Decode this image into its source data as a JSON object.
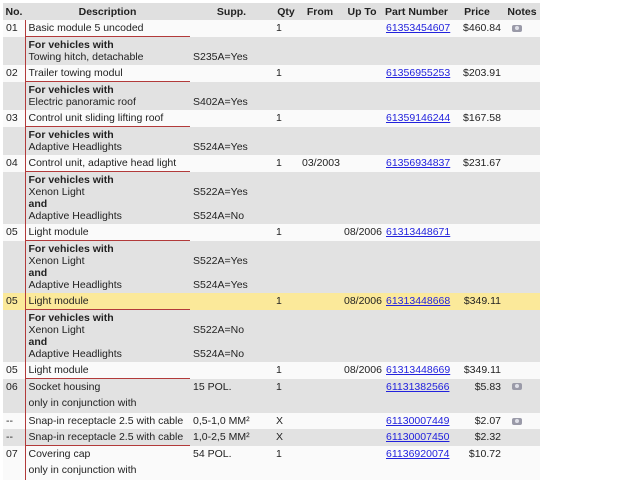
{
  "headers": [
    "No.",
    "Description",
    "Supp.",
    "Qty",
    "From",
    "Up To",
    "Part Number",
    "Price",
    "Notes"
  ],
  "colors": {
    "bracket": "#b23a3a",
    "highlight": "#fbe99a",
    "link": "#2222dd"
  },
  "rows": [
    {
      "kind": "item",
      "no": "01",
      "desc": "Basic module 5 uncoded",
      "supp": "",
      "qty": "1",
      "from": "",
      "upto": "",
      "part": "61353454607",
      "price": "$460.84",
      "camera": true,
      "bg": "white"
    },
    {
      "kind": "cond",
      "lines": [
        {
          "text": "For vehicles with",
          "bold": true,
          "supp": ""
        },
        {
          "text": "Towing hitch, detachable",
          "supp": "S235A=Yes"
        }
      ]
    },
    {
      "kind": "item",
      "no": "02",
      "desc": "Trailer towing modul",
      "supp": "",
      "qty": "1",
      "from": "",
      "upto": "",
      "part": "61356955253",
      "price": "$203.91",
      "bg": "white"
    },
    {
      "kind": "cond",
      "lines": [
        {
          "text": "For vehicles with",
          "bold": true,
          "supp": ""
        },
        {
          "text": "Electric panoramic roof",
          "supp": "S402A=Yes"
        }
      ]
    },
    {
      "kind": "item",
      "no": "03",
      "desc": "Control unit sliding lifting roof",
      "supp": "",
      "qty": "1",
      "from": "",
      "upto": "",
      "part": "61359146244",
      "price": "$167.58",
      "bg": "white"
    },
    {
      "kind": "cond",
      "lines": [
        {
          "text": "For vehicles with",
          "bold": true,
          "supp": ""
        },
        {
          "text": "Adaptive Headlights",
          "supp": "S524A=Yes"
        }
      ]
    },
    {
      "kind": "item",
      "no": "04",
      "desc": "Control unit, adaptive head light",
      "supp": "",
      "qty": "1",
      "from": "03/2003",
      "upto": "",
      "part": "61356934837",
      "price": "$231.67",
      "bg": "white"
    },
    {
      "kind": "cond",
      "lines": [
        {
          "text": "For vehicles with",
          "bold": true,
          "supp": ""
        },
        {
          "text": "Xenon Light",
          "supp": "S522A=Yes"
        },
        {
          "text": "and",
          "bold": true,
          "supp": ""
        },
        {
          "text": "Adaptive Headlights",
          "supp": "S524A=No"
        }
      ]
    },
    {
      "kind": "item",
      "no": "05",
      "desc": "Light module",
      "supp": "",
      "qty": "1",
      "from": "",
      "upto": "08/2006",
      "part": "61313448671",
      "price": "",
      "bg": "white"
    },
    {
      "kind": "cond",
      "lines": [
        {
          "text": "For vehicles with",
          "bold": true,
          "supp": ""
        },
        {
          "text": "Xenon Light",
          "supp": "S522A=Yes"
        },
        {
          "text": "and",
          "bold": true,
          "supp": ""
        },
        {
          "text": "Adaptive Headlights",
          "supp": "S524A=Yes"
        }
      ]
    },
    {
      "kind": "item",
      "no": "05",
      "desc": "Light module",
      "supp": "",
      "qty": "1",
      "from": "",
      "upto": "08/2006",
      "part": "61313448668",
      "price": "$349.11",
      "bg": "hl"
    },
    {
      "kind": "cond",
      "lines": [
        {
          "text": "For vehicles with",
          "bold": true,
          "supp": ""
        },
        {
          "text": "Xenon Light",
          "supp": "S522A=No"
        },
        {
          "text": "and",
          "bold": true,
          "supp": ""
        },
        {
          "text": "Adaptive Headlights",
          "supp": "S524A=No"
        }
      ]
    },
    {
      "kind": "item",
      "no": "05",
      "desc": "Light module",
      "supp": "",
      "qty": "1",
      "from": "",
      "upto": "08/2006",
      "part": "61313448669",
      "price": "$349.11",
      "bg": "white"
    },
    {
      "kind": "item",
      "no": "06",
      "desc": "Socket housing",
      "desc2": "only in conjunction with",
      "supp": "15 POL.",
      "qty": "1",
      "from": "",
      "upto": "",
      "part": "61131382566",
      "price": "$5.83",
      "camera": true,
      "bg": "gray",
      "top": true,
      "nobottom": true
    },
    {
      "kind": "item",
      "no": "--",
      "desc": "Snap-in receptacle 2.5 with cable",
      "supp": "0,5-1,0 MM²",
      "qty": "X",
      "from": "",
      "upto": "",
      "part": "61130007449",
      "price": "$2.07",
      "camera": true,
      "bg": "white",
      "nobottom": true
    },
    {
      "kind": "item",
      "no": "--",
      "desc": "Snap-in receptacle 2.5 with cable",
      "supp": "1,0-2,5 MM²",
      "qty": "X",
      "from": "",
      "upto": "",
      "part": "61130007450",
      "price": "$2.32",
      "bg": "gray"
    },
    {
      "kind": "item",
      "no": "07",
      "desc": "Covering cap",
      "desc2": "only in conjunction with",
      "supp": "54 POL.",
      "qty": "1",
      "from": "",
      "upto": "",
      "part": "61136920074",
      "price": "$10.72",
      "bg": "white",
      "top": true,
      "nobottom": true
    }
  ]
}
